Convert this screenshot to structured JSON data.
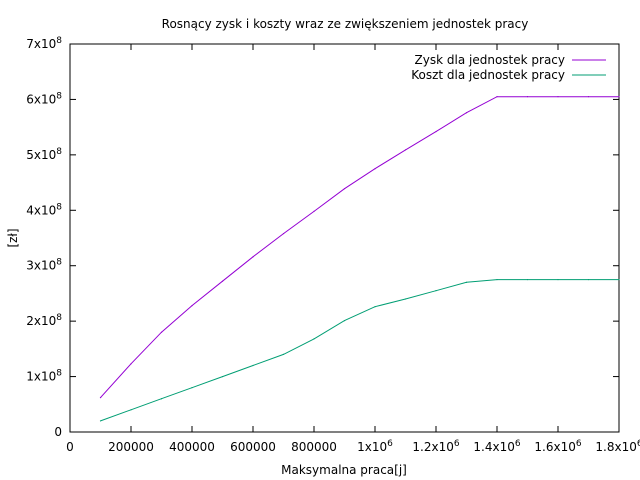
{
  "chart_data": {
    "type": "line",
    "title": "Rosnący zysk i koszty wraz ze zwiększeniem jednostek pracy",
    "xlabel": "Maksymalna praca[j]",
    "ylabel": "[zł]",
    "xlim": [
      0,
      1800000
    ],
    "ylim": [
      0,
      700000000
    ],
    "grid": false,
    "legend_position": "top-right",
    "x_ticks": [
      {
        "value": 0,
        "base": "0",
        "sup": ""
      },
      {
        "value": 200000,
        "base": "200000",
        "sup": ""
      },
      {
        "value": 400000,
        "base": "400000",
        "sup": ""
      },
      {
        "value": 600000,
        "base": "600000",
        "sup": ""
      },
      {
        "value": 800000,
        "base": "800000",
        "sup": ""
      },
      {
        "value": 1000000,
        "base": "1x10",
        "sup": "6"
      },
      {
        "value": 1200000,
        "base": "1.2x10",
        "sup": "6"
      },
      {
        "value": 1400000,
        "base": "1.4x10",
        "sup": "6"
      },
      {
        "value": 1600000,
        "base": "1.6x10",
        "sup": "6"
      },
      {
        "value": 1800000,
        "base": "1.8x10",
        "sup": "6"
      }
    ],
    "y_ticks": [
      {
        "value": 0,
        "base": "0",
        "sup": ""
      },
      {
        "value": 100000000,
        "base": "1x10",
        "sup": "8"
      },
      {
        "value": 200000000,
        "base": "2x10",
        "sup": "8"
      },
      {
        "value": 300000000,
        "base": "3x10",
        "sup": "8"
      },
      {
        "value": 400000000,
        "base": "4x10",
        "sup": "8"
      },
      {
        "value": 500000000,
        "base": "5x10",
        "sup": "8"
      },
      {
        "value": 600000000,
        "base": "6x10",
        "sup": "8"
      },
      {
        "value": 700000000,
        "base": "7x10",
        "sup": "8"
      }
    ],
    "x": [
      100000,
      200000,
      300000,
      400000,
      500000,
      600000,
      700000,
      800000,
      900000,
      1000000,
      1100000,
      1200000,
      1300000,
      1400000,
      1500000,
      1600000,
      1700000,
      1800000
    ],
    "series": [
      {
        "name": "Zysk dla jednostek pracy",
        "color": "#9400d3",
        "values": [
          62000000,
          123000000,
          180000000,
          228000000,
          272000000,
          316000000,
          358000000,
          398000000,
          439000000,
          475000000,
          509000000,
          542000000,
          576000000,
          605000000,
          605000000,
          605000000,
          605000000,
          605000000
        ]
      },
      {
        "name": "Koszt dla jednostek pracy",
        "color": "#009e73",
        "values": [
          20000000,
          40000000,
          60000000,
          80000000,
          100000000,
          120000000,
          140000000,
          168000000,
          201000000,
          226000000,
          240000000,
          255000000,
          270000000,
          275000000,
          275000000,
          275000000,
          275000000,
          275000000
        ]
      }
    ]
  }
}
